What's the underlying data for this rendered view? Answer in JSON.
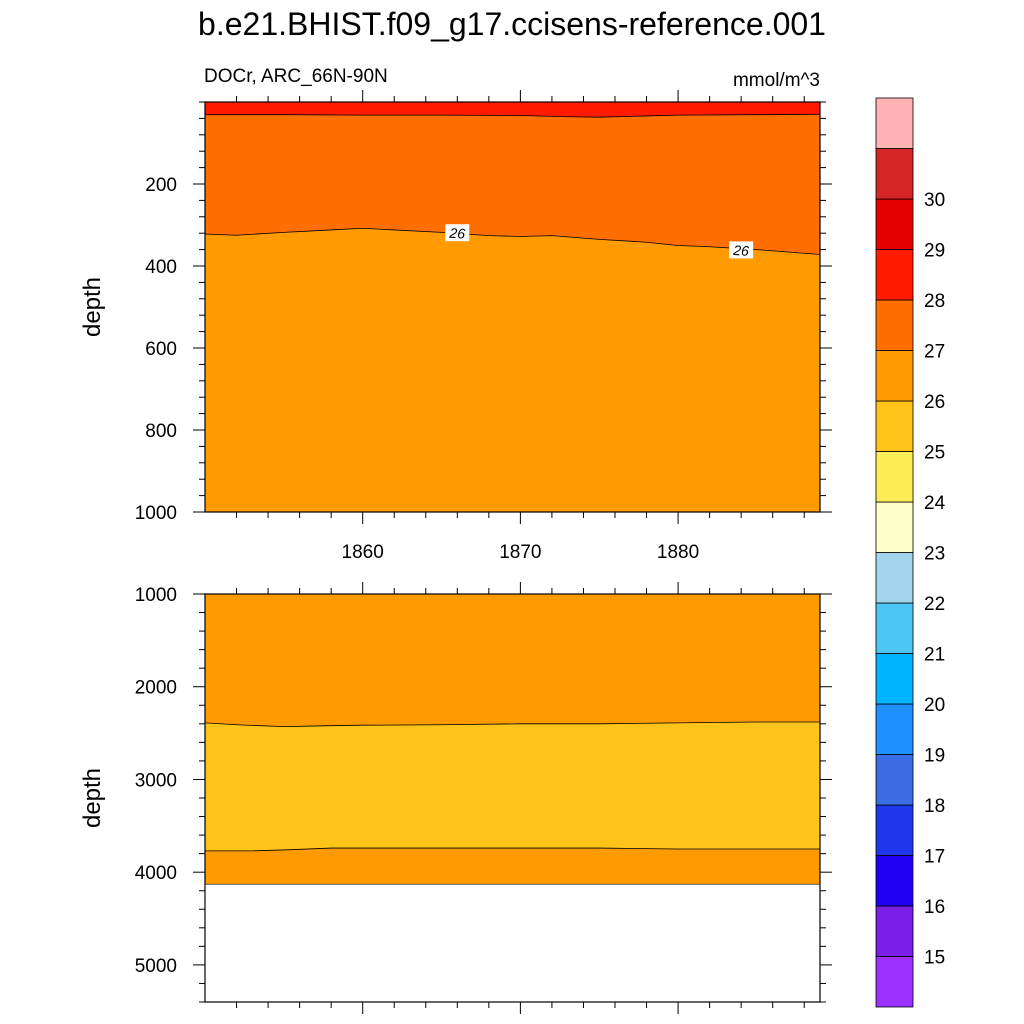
{
  "chart_data": {
    "type": "contour",
    "title": "b.e21.BHIST.f09_g17.ccisens-reference.001",
    "variable_label": "DOCr, ARC_66N-90N",
    "units_label": "mmol/m^3",
    "x_ticks": [
      1860,
      1870,
      1880
    ],
    "xlim": [
      1850,
      1889
    ],
    "panels": [
      {
        "name": "upper",
        "ylabel": "depth",
        "ylim": [
          0,
          1000
        ],
        "y_ticks": [
          200,
          400,
          600,
          800,
          1000
        ],
        "bottom_fill_depth": 1000,
        "bands": [
          {
            "range": "26-27",
            "color": "#ff6e00",
            "bottom": "26"
          },
          {
            "range": "27-28",
            "color": "#ff1a00",
            "bottom": "27"
          }
        ],
        "base_color": "#ff9a00",
        "contours": {
          "26": {
            "x": [
              1850,
              1852,
              1855,
              1858,
              1860,
              1862,
              1865,
              1868,
              1870,
              1872,
              1875,
              1878,
              1880,
              1882,
              1885,
              1889
            ],
            "depth": [
              322,
              325,
              318,
              312,
              308,
              312,
              318,
              326,
              328,
              326,
              335,
              342,
              350,
              353,
              360,
              372
            ]
          },
          "27": {
            "x": [
              1850,
              1855,
              1860,
              1865,
              1870,
              1873,
              1875,
              1878,
              1880,
              1885,
              1889
            ],
            "depth": [
              31,
              31,
              32,
              32,
              33,
              36,
              37,
              34,
              32,
              31,
              30
            ]
          }
        },
        "contour_labels": [
          {
            "text": "26",
            "x": 1866,
            "depth": 320
          },
          {
            "text": "26",
            "x": 1884,
            "depth": 362
          }
        ]
      },
      {
        "name": "lower",
        "ylabel": "depth",
        "ylim": [
          1000,
          5400
        ],
        "y_ticks": [
          1000,
          2000,
          3000,
          4000,
          5000
        ],
        "bottom_fill_depth": 4130,
        "bands": [
          {
            "range": "24-25",
            "color": "#ffc41a",
            "top": "25",
            "bottom": "25b"
          }
        ],
        "base_color": "#ff9a00",
        "contours": {
          "25": {
            "x": [
              1850,
              1852,
              1855,
              1858,
              1860,
              1865,
              1870,
              1875,
              1880,
              1885,
              1889
            ],
            "depth": [
              2390,
              2410,
              2430,
              2420,
              2415,
              2410,
              2400,
              2400,
              2390,
              2380,
              2380
            ]
          },
          "25b": {
            "x": [
              1850,
              1853,
              1855,
              1858,
              1860,
              1865,
              1870,
              1875,
              1880,
              1885,
              1889
            ],
            "depth": [
              3770,
              3770,
              3760,
              3740,
              3740,
              3740,
              3740,
              3740,
              3750,
              3750,
              3750
            ]
          }
        }
      }
    ],
    "colorbar": {
      "labels": [
        "15",
        "16",
        "17",
        "18",
        "19",
        "20",
        "21",
        "22",
        "23",
        "24",
        "25",
        "26",
        "27",
        "28",
        "29",
        "30"
      ],
      "colors": [
        "#9b30ff",
        "#7a1fe8",
        "#1f00f0",
        "#1f37eb",
        "#3a6de6",
        "#1e90ff",
        "#00b4ff",
        "#4dc6f5",
        "#a3d6ed",
        "#ffffcc",
        "#ffed57",
        "#ffc41a",
        "#ff9a00",
        "#ff6e00",
        "#ff1a00",
        "#e50000",
        "#d42626",
        "#ffb3b3"
      ]
    }
  }
}
